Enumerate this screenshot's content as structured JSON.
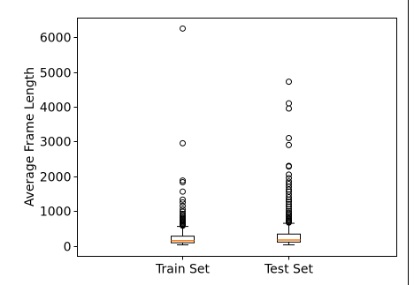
{
  "chart_data": {
    "type": "box",
    "ylabel": "Average Frame Length",
    "ylim": [
      -300,
      6550
    ],
    "yticks": [
      0,
      1000,
      2000,
      3000,
      4000,
      5000,
      6000
    ],
    "categories": [
      "Train Set",
      "Test Set"
    ],
    "series": [
      {
        "whisker_low": 30,
        "q1": 90,
        "median": 150,
        "q3": 280,
        "whisker_high": 560,
        "fliers": [
          6250,
          2950,
          1880,
          1830,
          1560,
          1330,
          1250,
          1150,
          1050,
          980,
          920,
          880,
          840,
          800,
          770,
          740,
          710,
          680,
          650,
          620,
          600,
          580
        ]
      },
      {
        "whisker_low": 30,
        "q1": 110,
        "median": 170,
        "q3": 340,
        "whisker_high": 650,
        "fliers": [
          4720,
          4100,
          3950,
          3100,
          2900,
          2300,
          2280,
          2050,
          1950,
          1850,
          1780,
          1700,
          1620,
          1560,
          1480,
          1400,
          1330,
          1270,
          1200,
          1130,
          1060,
          1000,
          950,
          900,
          860,
          820,
          780,
          750,
          720,
          690,
          670
        ]
      }
    ]
  }
}
